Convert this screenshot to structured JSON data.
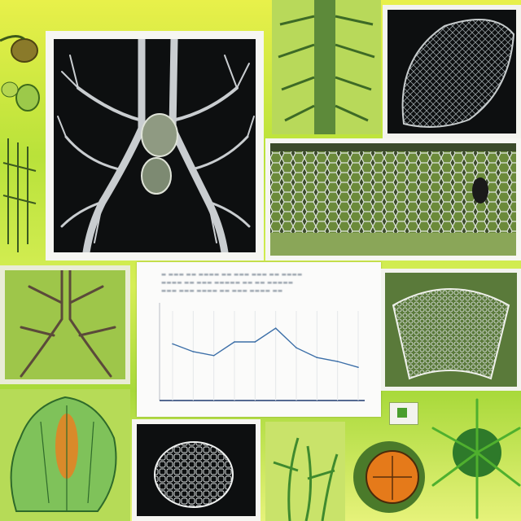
{
  "palette": {
    "background": "#cfe84a",
    "accent_green": "#4a9e2e",
    "dark_panel": "#0d0f10",
    "line_blue": "#3c6fa8"
  },
  "panels": [
    {
      "name": "lung-bronchial-tree",
      "icon": "bronchi-illustration"
    },
    {
      "name": "fern-frond",
      "icon": "leaf-illustration"
    },
    {
      "name": "dark-mesh-leaf",
      "icon": "mesh-illustration"
    },
    {
      "name": "lattice-branches",
      "icon": "lattice-illustration"
    },
    {
      "name": "green-bronchi",
      "icon": "branch-illustration"
    },
    {
      "name": "mesh-shell",
      "icon": "shell-illustration"
    },
    {
      "name": "green-hand-leaf",
      "icon": "hand-leaf-illustration"
    },
    {
      "name": "skeletal-cell",
      "icon": "cell-illustration"
    },
    {
      "name": "seaweed",
      "icon": "algae-illustration"
    },
    {
      "name": "orange-sphere",
      "icon": "sphere-illustration"
    },
    {
      "name": "spiky-plant",
      "icon": "spiky-illustration"
    }
  ],
  "chart_data": {
    "type": "line",
    "series": [
      {
        "values": [
          79,
          75,
          73,
          80,
          80,
          87,
          77,
          72,
          70,
          67
        ]
      }
    ]
  }
}
